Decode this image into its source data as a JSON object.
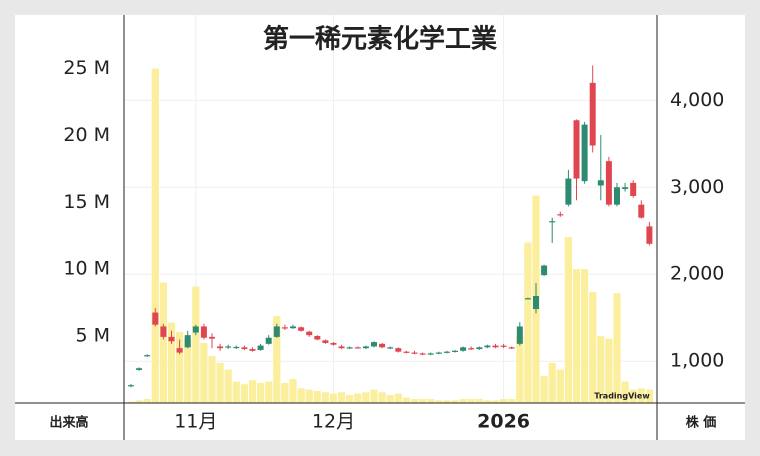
{
  "chart_data": {
    "type": "candlestick",
    "title": "第一稀元素化学工業",
    "y_label": "出来高",
    "y2_label": "株 価",
    "watermark": "TradingView",
    "xticks": [
      {
        "value": 8,
        "label": "11月"
      },
      {
        "value": 25,
        "label": "12月"
      },
      {
        "value": 46,
        "label": "2026"
      }
    ],
    "ylim": [
      0,
      29000000
    ],
    "yticks": [
      {
        "value": 5000000,
        "label": "5 M"
      },
      {
        "value": 10000000,
        "label": "10 M"
      },
      {
        "value": 15000000,
        "label": "15 M"
      },
      {
        "value": 20000000,
        "label": "20 M"
      },
      {
        "value": 25000000,
        "label": "25 M"
      }
    ],
    "y2lim": [
      520,
      4980
    ],
    "y2ticks": [
      {
        "value": 1000,
        "label": "1,000"
      },
      {
        "value": 2000,
        "label": "2,000"
      },
      {
        "value": 3000,
        "label": "3,000"
      },
      {
        "value": 4000,
        "label": "4,000"
      }
    ],
    "grid": true,
    "up_color": "#2e8b72",
    "down_color": "#e04650",
    "volume_color": "#fbee9c",
    "open": [
      720,
      900,
      1060,
      1560,
      1400,
      1280,
      1150,
      1160,
      1330,
      1400,
      1280,
      1170,
      1160,
      1160,
      1160,
      1140,
      1130,
      1200,
      1280,
      1390,
      1380,
      1390,
      1340,
      1290,
      1240,
      1210,
      1170,
      1150,
      1160,
      1150,
      1170,
      1200,
      1150,
      1150,
      1110,
      1100,
      1090,
      1080,
      1090,
      1100,
      1110,
      1120,
      1150,
      1140,
      1160,
      1180,
      1180,
      1160,
      1200,
      1720,
      1600,
      1990,
      2600,
      2690,
      2800,
      3770,
      3070,
      4200,
      3020,
      3300,
      2800,
      2980,
      3050,
      2800,
      2550
    ],
    "high": [
      740,
      930,
      1080,
      1610,
      1430,
      1350,
      1250,
      1350,
      1420,
      1430,
      1320,
      1200,
      1190,
      1180,
      1180,
      1160,
      1200,
      1300,
      1430,
      1420,
      1420,
      1400,
      1350,
      1300,
      1250,
      1220,
      1190,
      1170,
      1170,
      1180,
      1230,
      1210,
      1170,
      1160,
      1120,
      1120,
      1100,
      1100,
      1110,
      1120,
      1130,
      1170,
      1170,
      1170,
      1190,
      1200,
      1200,
      1170,
      1450,
      1730,
      1900,
      2110,
      2650,
      2720,
      3200,
      3780,
      3750,
      4400,
      3600,
      3350,
      3050,
      3050,
      3080,
      2850,
      2600
    ],
    "low": [
      700,
      890,
      1050,
      1400,
      1250,
      1200,
      1080,
      1150,
      1300,
      1250,
      1150,
      1120,
      1140,
      1140,
      1130,
      1110,
      1120,
      1190,
      1270,
      1360,
      1370,
      1340,
      1280,
      1240,
      1200,
      1180,
      1140,
      1140,
      1150,
      1140,
      1160,
      1150,
      1140,
      1100,
      1090,
      1080,
      1070,
      1070,
      1080,
      1090,
      1100,
      1110,
      1130,
      1130,
      1150,
      1150,
      1150,
      1140,
      1180,
      1710,
      1550,
      1980,
      2360,
      2660,
      2780,
      2850,
      3040,
      3400,
      2850,
      2780,
      2780,
      2950,
      2880,
      2640,
      2330
    ],
    "close": [
      725,
      920,
      1070,
      1420,
      1280,
      1230,
      1100,
      1300,
      1400,
      1270,
      1260,
      1150,
      1170,
      1165,
      1140,
      1120,
      1180,
      1270,
      1400,
      1380,
      1400,
      1350,
      1300,
      1250,
      1210,
      1190,
      1150,
      1160,
      1155,
      1170,
      1220,
      1160,
      1160,
      1110,
      1100,
      1090,
      1085,
      1090,
      1100,
      1110,
      1120,
      1160,
      1140,
      1160,
      1180,
      1160,
      1170,
      1150,
      1400,
      1725,
      1750,
      2100,
      2610,
      2680,
      3100,
      3100,
      3720,
      3480,
      3080,
      2800,
      3000,
      3000,
      2900,
      2650,
      2350
    ],
    "volume": [
      100000,
      200000,
      300000,
      25000000,
      9000000,
      6000000,
      5300000,
      4800000,
      8700000,
      4500000,
      3500000,
      3000000,
      2500000,
      1600000,
      1400000,
      1700000,
      1500000,
      1600000,
      6500000,
      1500000,
      1800000,
      1100000,
      1000000,
      900000,
      800000,
      700000,
      800000,
      600000,
      700000,
      800000,
      1000000,
      800000,
      600000,
      700000,
      400000,
      300000,
      300000,
      300000,
      200000,
      200000,
      200000,
      300000,
      300000,
      300000,
      200000,
      200000,
      300000,
      300000,
      5000000,
      12000000,
      15500000,
      2000000,
      3000000,
      2500000,
      12400000,
      10000000,
      10000000,
      8300000,
      5000000,
      4800000,
      8200000,
      1600000,
      1000000,
      1100000,
      1000000
    ]
  }
}
